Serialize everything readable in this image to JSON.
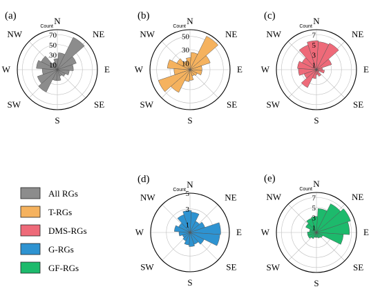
{
  "count_label": "Count",
  "directions": [
    "N",
    "NE",
    "E",
    "SE",
    "S",
    "SW",
    "W",
    "NW"
  ],
  "legend": [
    {
      "label": "All RGs",
      "color": "#8c8c8c"
    },
    {
      "label": "T-RGs",
      "color": "#f5b25e"
    },
    {
      "label": "DMS-RGs",
      "color": "#ee6a79"
    },
    {
      "label": "G-RGs",
      "color": "#2e93d1"
    },
    {
      "label": "GF-RGs",
      "color": "#1dba6c"
    }
  ],
  "chart_data": [
    {
      "type": "polar-bar",
      "panel": "(a)",
      "series_name": "All RGs",
      "color": "#8c8c8c",
      "rmax": 80,
      "ticks": [
        10,
        30,
        50,
        70
      ],
      "bins": [
        {
          "angle": 15,
          "value": 34
        },
        {
          "angle": 37.5,
          "value": 72
        },
        {
          "angle": 60,
          "value": 40
        },
        {
          "angle": 82.5,
          "value": 32
        },
        {
          "angle": 105,
          "value": 24
        },
        {
          "angle": 127.5,
          "value": 18
        },
        {
          "angle": 150,
          "value": 14
        },
        {
          "angle": 172.5,
          "value": 22
        },
        {
          "angle": 195,
          "value": 22
        },
        {
          "angle": 217.5,
          "value": 50
        },
        {
          "angle": 240,
          "value": 42
        },
        {
          "angle": 262.5,
          "value": 30
        },
        {
          "angle": 285,
          "value": 42
        },
        {
          "angle": 307.5,
          "value": 36
        },
        {
          "angle": 330,
          "value": 16
        },
        {
          "angle": 352.5,
          "value": 22
        }
      ]
    },
    {
      "type": "polar-bar",
      "panel": "(b)",
      "series_name": "T-RGs",
      "color": "#f5b25e",
      "rmax": 60,
      "ticks": [
        10,
        30,
        50
      ],
      "bins": [
        {
          "angle": 15,
          "value": 26
        },
        {
          "angle": 37.5,
          "value": 56
        },
        {
          "angle": 60,
          "value": 32
        },
        {
          "angle": 82.5,
          "value": 18
        },
        {
          "angle": 105,
          "value": 18
        },
        {
          "angle": 127.5,
          "value": 12
        },
        {
          "angle": 150,
          "value": 10
        },
        {
          "angle": 172.5,
          "value": 16
        },
        {
          "angle": 195,
          "value": 18
        },
        {
          "angle": 217.5,
          "value": 38
        },
        {
          "angle": 240,
          "value": 50
        },
        {
          "angle": 262.5,
          "value": 24
        },
        {
          "angle": 285,
          "value": 34
        },
        {
          "angle": 307.5,
          "value": 22
        },
        {
          "angle": 330,
          "value": 14
        },
        {
          "angle": 352.5,
          "value": 18
        }
      ]
    },
    {
      "type": "polar-bar",
      "panel": "(c)",
      "series_name": "DMS-RGs",
      "color": "#ee6a79",
      "rmax": 8,
      "ticks": [
        1,
        3,
        5,
        7
      ],
      "bins": [
        {
          "angle": 15,
          "value": 5.6
        },
        {
          "angle": 37.5,
          "value": 5.9
        },
        {
          "angle": 60,
          "value": 3.2
        },
        {
          "angle": 82.5,
          "value": 1.2
        },
        {
          "angle": 105,
          "value": 1.6
        },
        {
          "angle": 127.5,
          "value": 0.6
        },
        {
          "angle": 150,
          "value": 1.4
        },
        {
          "angle": 172.5,
          "value": 1.0
        },
        {
          "angle": 195,
          "value": 1.8
        },
        {
          "angle": 217.5,
          "value": 4.0
        },
        {
          "angle": 240,
          "value": 2.6
        },
        {
          "angle": 262.5,
          "value": 3.6
        },
        {
          "angle": 285,
          "value": 3.8
        },
        {
          "angle": 307.5,
          "value": 3.2
        },
        {
          "angle": 330,
          "value": 5.2
        },
        {
          "angle": 352.5,
          "value": 5.8
        }
      ]
    },
    {
      "type": "polar-bar",
      "panel": "(d)",
      "series_name": "G-RGs",
      "color": "#2e93d1",
      "rmax": 5,
      "ticks": [
        1,
        3,
        5
      ],
      "bins": [
        {
          "angle": 15,
          "value": 2.6
        },
        {
          "angle": 37.5,
          "value": 1.6
        },
        {
          "angle": 60,
          "value": 2.0
        },
        {
          "angle": 82.5,
          "value": 3.9
        },
        {
          "angle": 105,
          "value": 3.8
        },
        {
          "angle": 127.5,
          "value": 2.0
        },
        {
          "angle": 150,
          "value": 1.6
        },
        {
          "angle": 172.5,
          "value": 1.8
        },
        {
          "angle": 195,
          "value": 1.6
        },
        {
          "angle": 217.5,
          "value": 1.2
        },
        {
          "angle": 240,
          "value": 1.0
        },
        {
          "angle": 262.5,
          "value": 1.4
        },
        {
          "angle": 285,
          "value": 2.0
        },
        {
          "angle": 307.5,
          "value": 1.6
        },
        {
          "angle": 330,
          "value": 2.4
        },
        {
          "angle": 352.5,
          "value": 2.8
        }
      ]
    },
    {
      "type": "polar-bar",
      "panel": "(e)",
      "series_name": "GF-RGs",
      "color": "#1dba6c",
      "rmax": 8,
      "ticks": [
        1,
        3,
        5,
        7
      ],
      "bins": [
        {
          "angle": 15,
          "value": 4.8
        },
        {
          "angle": 37.5,
          "value": 6.4
        },
        {
          "angle": 60,
          "value": 7.2
        },
        {
          "angle": 82.5,
          "value": 6.6
        },
        {
          "angle": 105,
          "value": 5.4
        },
        {
          "angle": 127.5,
          "value": 1.4
        },
        {
          "angle": 150,
          "value": 1.2
        },
        {
          "angle": 172.5,
          "value": 1.0
        },
        {
          "angle": 195,
          "value": 1.0
        },
        {
          "angle": 217.5,
          "value": 1.4
        },
        {
          "angle": 240,
          "value": 1.8
        },
        {
          "angle": 262.5,
          "value": 1.8
        },
        {
          "angle": 285,
          "value": 1.4
        },
        {
          "angle": 307.5,
          "value": 2.4
        },
        {
          "angle": 330,
          "value": 3.0
        },
        {
          "angle": 352.5,
          "value": 3.2
        }
      ]
    }
  ]
}
